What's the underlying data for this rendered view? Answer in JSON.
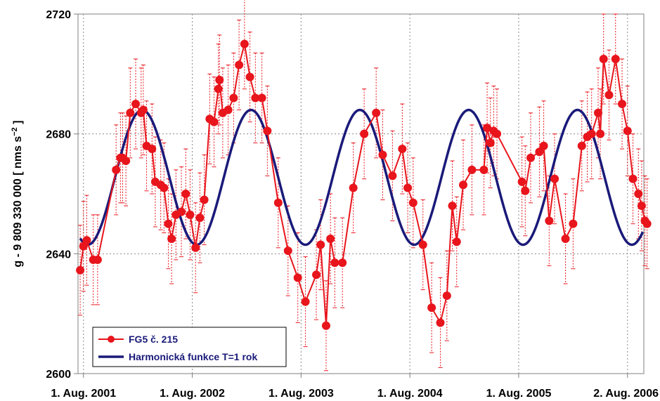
{
  "chart_data": {
    "type": "line",
    "ylabel": "g - 9 809 330 000 [ nms",
    "ylabel_unit": "s",
    "ylabel_exp": "−2",
    "ylabel_end": " ]",
    "ylim": [
      2600,
      2720
    ],
    "yticks": [
      2600,
      2640,
      2680,
      2720
    ],
    "xlim": [
      2001.53,
      2006.73
    ],
    "xticks": [
      {
        "x": 2001.58,
        "label": "1. Aug. 2001"
      },
      {
        "x": 2002.58,
        "label": "1. Aug. 2002"
      },
      {
        "x": 2003.58,
        "label": "1. Aug. 2003"
      },
      {
        "x": 2004.58,
        "label": "1. Aug. 2004"
      },
      {
        "x": 2005.58,
        "label": "1. Aug. 2005"
      },
      {
        "x": 2006.58,
        "label": "2. Aug. 2006"
      }
    ],
    "grid": true,
    "legend_position": "bottom-left",
    "series": [
      {
        "name": "FG5 č. 215",
        "color": "#e8151c",
        "error": 15,
        "points": [
          [
            2001.55,
            2634.5
          ],
          [
            2001.58,
            2642.5
          ],
          [
            2001.61,
            2644.5
          ],
          [
            2001.67,
            2638
          ],
          [
            2001.71,
            2638
          ],
          [
            2001.88,
            2668
          ],
          [
            2001.92,
            2672
          ],
          [
            2001.94,
            2672
          ],
          [
            2001.97,
            2671
          ],
          [
            2002.01,
            2687
          ],
          [
            2002.06,
            2690
          ],
          [
            2002.11,
            2687
          ],
          [
            2002.13,
            2688
          ],
          [
            2002.16,
            2676
          ],
          [
            2002.21,
            2675
          ],
          [
            2002.24,
            2664
          ],
          [
            2002.29,
            2663
          ],
          [
            2002.32,
            2662
          ],
          [
            2002.36,
            2650
          ],
          [
            2002.39,
            2645
          ],
          [
            2002.43,
            2653
          ],
          [
            2002.48,
            2654
          ],
          [
            2002.52,
            2660
          ],
          [
            2002.56,
            2653
          ],
          [
            2002.61,
            2642
          ],
          [
            2002.65,
            2652
          ],
          [
            2002.69,
            2658
          ],
          [
            2002.74,
            2685
          ],
          [
            2002.78,
            2684
          ],
          [
            2002.82,
            2695
          ],
          [
            2002.83,
            2698
          ],
          [
            2002.86,
            2687
          ],
          [
            2002.91,
            2688
          ],
          [
            2002.96,
            2692
          ],
          [
            2003.01,
            2703
          ],
          [
            2003.06,
            2710
          ],
          [
            2003.11,
            2699
          ],
          [
            2003.16,
            2692
          ],
          [
            2003.22,
            2692
          ],
          [
            2003.27,
            2681
          ],
          [
            2003.37,
            2657
          ],
          [
            2003.46,
            2641
          ],
          [
            2003.55,
            2632
          ],
          [
            2003.62,
            2624
          ],
          [
            2003.72,
            2633
          ],
          [
            2003.76,
            2643
          ],
          [
            2003.81,
            2616
          ],
          [
            2003.85,
            2645
          ],
          [
            2003.89,
            2637
          ],
          [
            2003.96,
            2637
          ],
          [
            2004.06,
            2662
          ],
          [
            2004.16,
            2680
          ],
          [
            2004.27,
            2687
          ],
          [
            2004.33,
            2673
          ],
          [
            2004.42,
            2666
          ],
          [
            2004.51,
            2675
          ],
          [
            2004.56,
            2662
          ],
          [
            2004.61,
            2657
          ],
          [
            2004.7,
            2643
          ],
          [
            2004.78,
            2622
          ],
          [
            2004.86,
            2617
          ],
          [
            2004.92,
            2626
          ],
          [
            2004.97,
            2656
          ],
          [
            2005.01,
            2644
          ],
          [
            2005.07,
            2663
          ],
          [
            2005.15,
            2668
          ],
          [
            2005.26,
            2668
          ],
          [
            2005.29,
            2682
          ],
          [
            2005.32,
            2677
          ],
          [
            2005.35,
            2681
          ],
          [
            2005.38,
            2680
          ],
          [
            2005.61,
            2664
          ],
          [
            2005.64,
            2661
          ],
          [
            2005.69,
            2672
          ],
          [
            2005.77,
            2674
          ],
          [
            2005.81,
            2676
          ],
          [
            2005.86,
            2651
          ],
          [
            2005.91,
            2665
          ],
          [
            2006.01,
            2645
          ],
          [
            2006.08,
            2650
          ],
          [
            2006.16,
            2676
          ],
          [
            2006.21,
            2679
          ],
          [
            2006.25,
            2680
          ],
          [
            2006.31,
            2687
          ],
          [
            2006.33,
            2680
          ],
          [
            2006.36,
            2705
          ],
          [
            2006.41,
            2693
          ],
          [
            2006.47,
            2705
          ],
          [
            2006.53,
            2690
          ],
          [
            2006.58,
            2681
          ],
          [
            2006.63,
            2665
          ],
          [
            2006.68,
            2660
          ],
          [
            2006.71,
            2656
          ],
          [
            2006.74,
            2651
          ],
          [
            2006.76,
            2650
          ]
        ]
      },
      {
        "name": "Harmonická funkce T=1 rok",
        "color": "#1a1a7a",
        "mean": 2665.5,
        "amplitude": 22.5,
        "period": 1,
        "peak_at": 2002.12,
        "x_range": [
          2001.55,
          2006.72
        ]
      }
    ]
  }
}
